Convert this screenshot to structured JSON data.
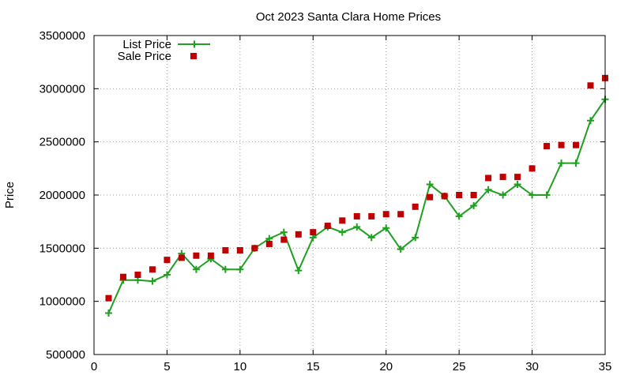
{
  "chart_data": {
    "type": "line",
    "title": "Oct 2023 Santa Clara Home Prices",
    "xlabel": "",
    "ylabel": "Price",
    "xlim": [
      0,
      35
    ],
    "ylim": [
      500000,
      3500000
    ],
    "xticks": [
      0,
      5,
      10,
      15,
      20,
      25,
      30,
      35
    ],
    "yticks": [
      500000,
      1000000,
      1500000,
      2000000,
      2500000,
      3000000,
      3500000
    ],
    "grid": true,
    "legend_position": "top-left",
    "series": [
      {
        "name": "List Price",
        "style": "line+cross",
        "color": "#20a020",
        "x": [
          1,
          2,
          3,
          4,
          5,
          6,
          7,
          8,
          9,
          10,
          11,
          12,
          13,
          14,
          15,
          16,
          17,
          18,
          19,
          20,
          21,
          22,
          23,
          24,
          25,
          26,
          27,
          28,
          29,
          30,
          31,
          32,
          33,
          34,
          35
        ],
        "values": [
          890000,
          1200000,
          1200000,
          1190000,
          1250000,
          1450000,
          1300000,
          1400000,
          1300000,
          1300000,
          1500000,
          1590000,
          1650000,
          1290000,
          1600000,
          1700000,
          1650000,
          1700000,
          1600000,
          1690000,
          1490000,
          1600000,
          2100000,
          1990000,
          1800000,
          1900000,
          2050000,
          2000000,
          2100000,
          2000000,
          2000000,
          2300000,
          2300000,
          2700000,
          2900000
        ]
      },
      {
        "name": "Sale Price",
        "style": "square",
        "color": "#c00000",
        "x": [
          1,
          2,
          3,
          4,
          5,
          6,
          7,
          8,
          9,
          10,
          11,
          12,
          13,
          14,
          15,
          16,
          17,
          18,
          19,
          20,
          21,
          22,
          23,
          24,
          25,
          26,
          27,
          28,
          29,
          30,
          31,
          32,
          33,
          34,
          35
        ],
        "values": [
          1030000,
          1230000,
          1250000,
          1300000,
          1390000,
          1410000,
          1430000,
          1430000,
          1480000,
          1480000,
          1500000,
          1540000,
          1580000,
          1630000,
          1650000,
          1710000,
          1760000,
          1800000,
          1800000,
          1820000,
          1820000,
          1890000,
          1980000,
          1990000,
          2000000,
          2000000,
          2160000,
          2170000,
          2170000,
          2250000,
          2460000,
          2470000,
          2470000,
          3030000,
          3100000
        ]
      }
    ]
  }
}
